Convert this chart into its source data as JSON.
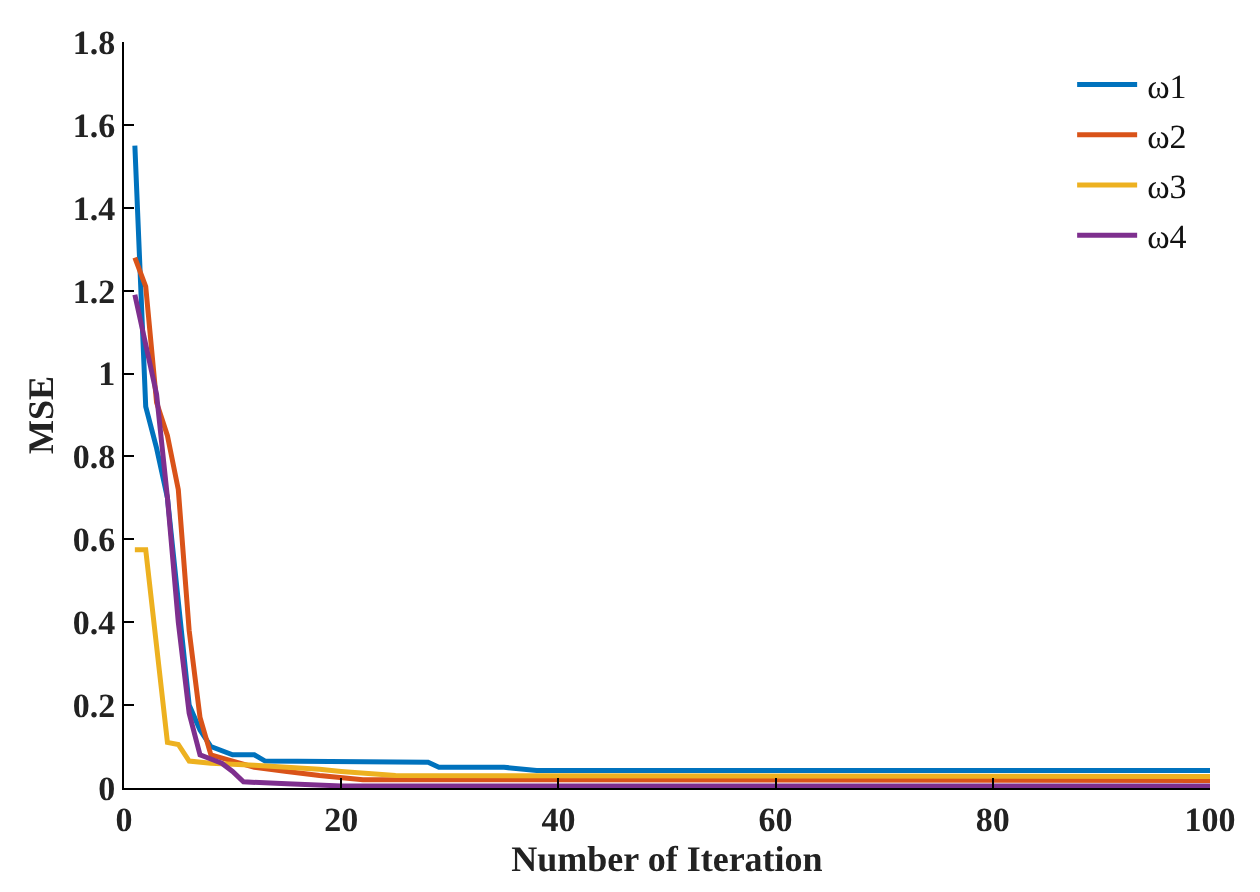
{
  "chart_data": {
    "type": "line",
    "xlabel": "Number of Iteration",
    "ylabel": "MSE",
    "xlim": [
      0,
      100
    ],
    "ylim": [
      0,
      1.8
    ],
    "xticks": [
      0,
      20,
      40,
      60,
      80,
      100
    ],
    "yticks": [
      0,
      0.2,
      0.4,
      0.6,
      0.8,
      1,
      1.2,
      1.4,
      1.6,
      1.8
    ],
    "legend": "top right",
    "marker": "none",
    "line_style": "solid",
    "series": [
      {
        "name": "ω1",
        "color": "#0072bd",
        "x": [
          1,
          2,
          3,
          4,
          5,
          6,
          7,
          8,
          10,
          12,
          13,
          28,
          29,
          35,
          38,
          100
        ],
        "values": [
          1.55,
          0.92,
          0.82,
          0.7,
          0.45,
          0.2,
          0.14,
          0.1,
          0.08,
          0.08,
          0.065,
          0.062,
          0.05,
          0.05,
          0.042,
          0.042
        ]
      },
      {
        "name": "ω2",
        "color": "#d95319",
        "x": [
          1,
          2,
          3,
          4,
          5,
          6,
          7,
          8,
          10,
          12,
          15,
          18,
          22,
          100
        ],
        "values": [
          1.28,
          1.21,
          0.93,
          0.85,
          0.72,
          0.38,
          0.17,
          0.08,
          0.065,
          0.05,
          0.04,
          0.03,
          0.02,
          0.018
        ]
      },
      {
        "name": "ω3",
        "color": "#edb120",
        "x": [
          1,
          2,
          4,
          5,
          6,
          8,
          12,
          18,
          20,
          25,
          100
        ],
        "values": [
          0.575,
          0.575,
          0.11,
          0.105,
          0.065,
          0.06,
          0.055,
          0.045,
          0.04,
          0.03,
          0.028
        ]
      },
      {
        "name": "ω4",
        "color": "#7e2f8e",
        "x": [
          1,
          3,
          4,
          5,
          6,
          7,
          8,
          9,
          10,
          11,
          15,
          20,
          100
        ],
        "values": [
          1.19,
          0.95,
          0.7,
          0.4,
          0.18,
          0.08,
          0.07,
          0.06,
          0.04,
          0.015,
          0.01,
          0.005,
          0.005
        ]
      }
    ]
  }
}
